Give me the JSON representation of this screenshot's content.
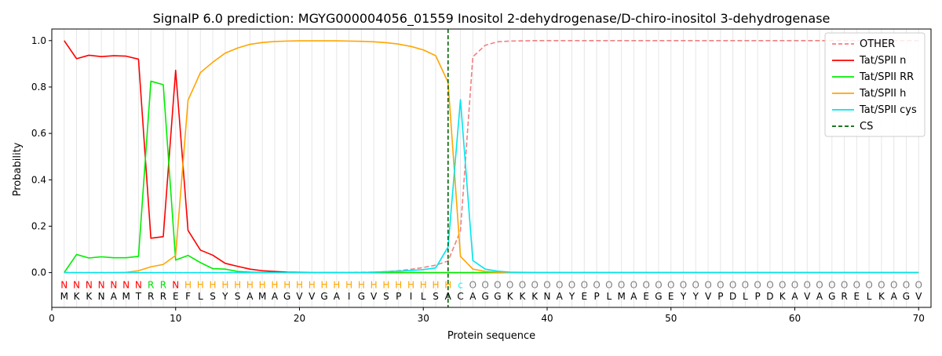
{
  "chart_data": {
    "type": "line",
    "title": "SignalP 6.0 prediction: MGYG000004056_01559 Inositol 2-dehydrogenase/D-chiro-inositol 3-dehydrogenase",
    "xlabel": "Protein sequence",
    "ylabel": "Probability",
    "xlim": [
      0,
      71
    ],
    "ylim": [
      -0.15,
      1.05
    ],
    "x_ticks": [
      0,
      10,
      20,
      30,
      40,
      50,
      60,
      70
    ],
    "y_ticks": [
      0.0,
      0.2,
      0.4,
      0.6,
      0.8,
      1.0
    ],
    "grid": "vertical lines at every residue",
    "legend_position": "top-right",
    "cleavage_site": 32,
    "sequence": [
      "M",
      "K",
      "K",
      "N",
      "A",
      "M",
      "T",
      "R",
      "R",
      "E",
      "F",
      "L",
      "S",
      "Y",
      "S",
      "A",
      "M",
      "A",
      "G",
      "V",
      "V",
      "G",
      "A",
      "I",
      "G",
      "V",
      "S",
      "P",
      "I",
      "L",
      "S",
      "A",
      "C",
      "A",
      "G",
      "G",
      "K",
      "K",
      "K",
      "N",
      "A",
      "Y",
      "E",
      "P",
      "L",
      "M",
      "A",
      "E",
      "G",
      "E",
      "Y",
      "Y",
      "V",
      "P",
      "D",
      "L",
      "P",
      "D",
      "K",
      "A",
      "V",
      "A",
      "G",
      "R",
      "E",
      "L",
      "K",
      "A",
      "G",
      "V"
    ],
    "region_labels": [
      "N",
      "N",
      "N",
      "N",
      "N",
      "N",
      "N",
      "R",
      "R",
      "N",
      "H",
      "H",
      "H",
      "H",
      "H",
      "H",
      "H",
      "H",
      "H",
      "H",
      "H",
      "H",
      "H",
      "H",
      "H",
      "H",
      "H",
      "H",
      "H",
      "H",
      "H",
      "H",
      "c",
      "O",
      "O",
      "O",
      "O",
      "O",
      "O",
      "O",
      "O",
      "O",
      "O",
      "O",
      "O",
      "O",
      "O",
      "O",
      "O",
      "O",
      "O",
      "O",
      "O",
      "O",
      "O",
      "O",
      "O",
      "O",
      "O",
      "O",
      "O",
      "O",
      "O",
      "O",
      "O",
      "O",
      "O",
      "O",
      "O",
      "O"
    ],
    "region_colors": {
      "N": "#ff0000",
      "R": "#00e000",
      "H": "#ffa500",
      "c": "#00ffff",
      "O": "#808080"
    },
    "series": [
      {
        "name": "OTHER",
        "color": "#f08080",
        "dash": true,
        "values": [
          0,
          0,
          0,
          0,
          0,
          0,
          0,
          0,
          0,
          0,
          0,
          0,
          0,
          0,
          0,
          0,
          0,
          0,
          0,
          0,
          0,
          0,
          0,
          0,
          0.001,
          0.002,
          0.004,
          0.008,
          0.014,
          0.022,
          0.032,
          0.05,
          0.18,
          0.93,
          0.98,
          0.995,
          0.998,
          0.999,
          1,
          1,
          1,
          1,
          1,
          1,
          1,
          1,
          1,
          1,
          1,
          1,
          1,
          1,
          1,
          1,
          1,
          1,
          1,
          1,
          1,
          1,
          1,
          1,
          1,
          1,
          1,
          1,
          1,
          1,
          1,
          1
        ]
      },
      {
        "name": "Tat/SPII n",
        "color": "#ff0000",
        "dash": false,
        "values": [
          1.0,
          0.922,
          0.937,
          0.931,
          0.935,
          0.933,
          0.92,
          0.148,
          0.155,
          0.872,
          0.182,
          0.097,
          0.075,
          0.04,
          0.027,
          0.015,
          0.008,
          0.005,
          0.002,
          0.001,
          0,
          0,
          0,
          0,
          0,
          0,
          0,
          0,
          0,
          0,
          0,
          0,
          0,
          0,
          0,
          0,
          0,
          0,
          0,
          0,
          0,
          0,
          0,
          0,
          0,
          0,
          0,
          0,
          0,
          0,
          0,
          0,
          0,
          0,
          0,
          0,
          0,
          0,
          0,
          0,
          0,
          0,
          0,
          0,
          0,
          0,
          0,
          0,
          0,
          0
        ]
      },
      {
        "name": "Tat/SPII RR",
        "color": "#00ee00",
        "dash": false,
        "values": [
          0,
          0.078,
          0.063,
          0.068,
          0.064,
          0.064,
          0.07,
          0.825,
          0.81,
          0.054,
          0.074,
          0.043,
          0.017,
          0.015,
          0.005,
          0.002,
          0.001,
          0,
          0,
          0,
          0,
          0,
          0,
          0,
          0,
          0,
          0,
          0,
          0,
          0,
          0,
          0,
          0,
          0,
          0,
          0,
          0,
          0,
          0,
          0,
          0,
          0,
          0,
          0,
          0,
          0,
          0,
          0,
          0,
          0,
          0,
          0,
          0,
          0,
          0,
          0,
          0,
          0,
          0,
          0,
          0,
          0,
          0,
          0,
          0,
          0,
          0,
          0,
          0,
          0
        ]
      },
      {
        "name": "Tat/SPII h",
        "color": "#ffa500",
        "dash": false,
        "values": [
          0,
          0,
          0,
          0,
          0,
          0.001,
          0.008,
          0.025,
          0.035,
          0.074,
          0.743,
          0.862,
          0.907,
          0.946,
          0.968,
          0.984,
          0.992,
          0.996,
          0.998,
          0.999,
          0.999,
          0.999,
          0.999,
          0.998,
          0.997,
          0.995,
          0.991,
          0.985,
          0.975,
          0.96,
          0.935,
          0.82,
          0.07,
          0.015,
          0.005,
          0.002,
          0,
          0,
          0,
          0,
          0,
          0,
          0,
          0,
          0,
          0,
          0,
          0,
          0,
          0,
          0,
          0,
          0,
          0,
          0,
          0,
          0,
          0,
          0,
          0,
          0,
          0,
          0,
          0,
          0,
          0,
          0,
          0,
          0,
          0
        ]
      },
      {
        "name": "Tat/SPII cys",
        "color": "#00e5ee",
        "dash": false,
        "values": [
          0,
          0,
          0,
          0,
          0,
          0,
          0,
          0,
          0,
          0,
          0,
          0,
          0,
          0,
          0,
          0,
          0,
          0,
          0,
          0,
          0,
          0,
          0,
          0,
          0,
          0.002,
          0.004,
          0.006,
          0.009,
          0.013,
          0.02,
          0.11,
          0.745,
          0.052,
          0.015,
          0.006,
          0.002,
          0.001,
          0,
          0,
          0,
          0,
          0,
          0,
          0,
          0,
          0,
          0,
          0,
          0,
          0,
          0,
          0,
          0,
          0,
          0,
          0,
          0,
          0,
          0,
          0,
          0,
          0,
          0,
          0,
          0,
          0,
          0,
          0,
          0
        ]
      }
    ],
    "cs_label": "CS",
    "cs_color": "#006400"
  }
}
